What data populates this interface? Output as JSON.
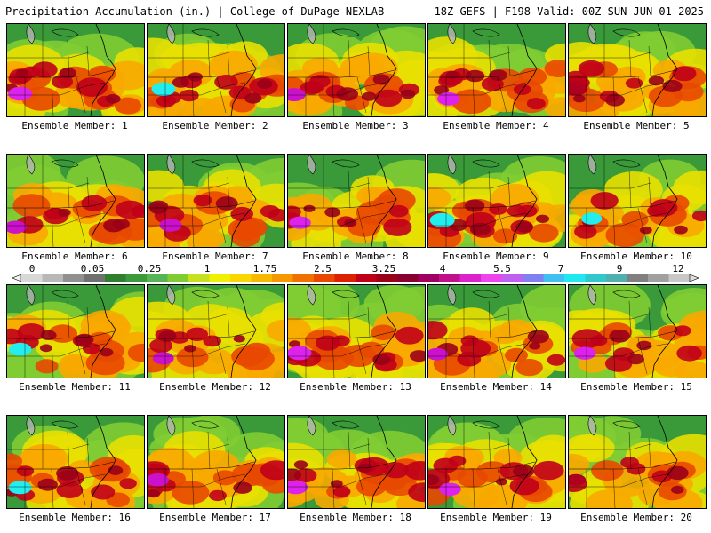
{
  "header": {
    "title": "Precipitation Accumulation (in.) | College of DuPage NEXLAB",
    "run_info": "18Z GEFS | F198 Valid: 00Z SUN JUN 01 2025"
  },
  "panels": [
    {
      "label": "Ensemble Member: 1",
      "intensity": 0.7,
      "max_color": "#dd22ee"
    },
    {
      "label": "Ensemble Member: 2",
      "intensity": 0.68,
      "max_color": "#22eeee"
    },
    {
      "label": "Ensemble Member: 3",
      "intensity": 0.62,
      "max_color": "#cc11cc"
    },
    {
      "label": "Ensemble Member: 4",
      "intensity": 0.6,
      "max_color": "#dd22ee"
    },
    {
      "label": "Ensemble Member: 5",
      "intensity": 0.72,
      "max_color": "#b00020"
    },
    {
      "label": "Ensemble Member: 6",
      "intensity": 0.55,
      "max_color": "#cc11cc"
    },
    {
      "label": "Ensemble Member: 7",
      "intensity": 0.58,
      "max_color": "#cc11cc"
    },
    {
      "label": "Ensemble Member: 8",
      "intensity": 0.52,
      "max_color": "#dd22ee"
    },
    {
      "label": "Ensemble Member: 9",
      "intensity": 0.75,
      "max_color": "#22eeee"
    },
    {
      "label": "Ensemble Member: 10",
      "intensity": 0.45,
      "max_color": "#22eeee"
    },
    {
      "label": "Ensemble Member: 11",
      "intensity": 0.6,
      "max_color": "#22eeee"
    },
    {
      "label": "Ensemble Member: 12",
      "intensity": 0.5,
      "max_color": "#cc11cc"
    },
    {
      "label": "Ensemble Member: 13",
      "intensity": 0.72,
      "max_color": "#dd22ee"
    },
    {
      "label": "Ensemble Member: 14",
      "intensity": 0.5,
      "max_color": "#cc11cc"
    },
    {
      "label": "Ensemble Member: 15",
      "intensity": 0.55,
      "max_color": "#dd22ee"
    },
    {
      "label": "Ensemble Member: 16",
      "intensity": 0.62,
      "max_color": "#22eeee"
    },
    {
      "label": "Ensemble Member: 17",
      "intensity": 0.58,
      "max_color": "#cc11cc"
    },
    {
      "label": "Ensemble Member: 18",
      "intensity": 0.7,
      "max_color": "#dd22ee"
    },
    {
      "label": "Ensemble Member: 19",
      "intensity": 0.55,
      "max_color": "#dd22ee"
    },
    {
      "label": "Ensemble Member: 20",
      "intensity": 0.4,
      "max_color": "#b00020"
    }
  ],
  "colorbar": {
    "tick_labels": [
      "0",
      "0.05",
      "0.25",
      "1",
      "1.75",
      "2.5",
      "3.25",
      "4",
      "5.5",
      "7",
      "9",
      "12"
    ],
    "colors": [
      "#d8d8d8",
      "#b8b8b8",
      "#909090",
      "#707070",
      "#2f7f2f",
      "#3c9a3c",
      "#55b455",
      "#7fcc33",
      "#c8e020",
      "#f0f000",
      "#f8d800",
      "#f8b800",
      "#f49a00",
      "#f07000",
      "#e84800",
      "#dc2000",
      "#c00018",
      "#9a0018",
      "#880030",
      "#a00060",
      "#c0108a",
      "#dc22cc",
      "#ee44ee",
      "#c060f0",
      "#8080f0",
      "#40c0f0",
      "#20e8f0",
      "#30c8c8",
      "#50b0b0",
      "#808080",
      "#a0a0a0",
      "#c8c8c8"
    ]
  }
}
